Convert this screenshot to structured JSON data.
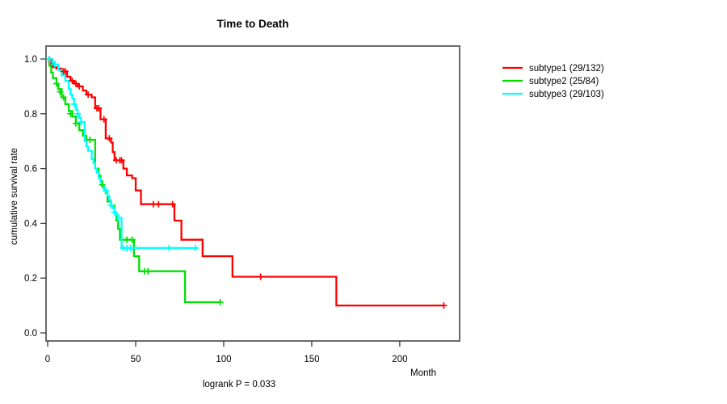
{
  "chart_data": {
    "type": "line",
    "variant": "kaplan-meier-step",
    "title": "Time to Death",
    "xlabel": "Month",
    "ylabel": "cumulative survival rate",
    "annotation": "logrank P = 0.033",
    "xlim": [
      0,
      234
    ],
    "ylim": [
      0,
      1
    ],
    "xticks": [
      0,
      50,
      100,
      150,
      200
    ],
    "xtick_labels": [
      "0",
      "50",
      "100",
      "150",
      "200"
    ],
    "yticks": [
      0,
      0.2,
      0.4,
      0.6,
      0.8,
      1
    ],
    "ytick_labels": [
      "0.0",
      "0.2",
      "0.4",
      "0.6",
      "0.8",
      "1.0"
    ],
    "grid": false,
    "legend_position": "right-outside",
    "axis_color": "#6b6b6b",
    "tick_color": "#3a3a3a",
    "text_color": "#000000",
    "series": [
      {
        "name": "subtype1 (29/132)",
        "color": "#ff0000",
        "steps": [
          [
            0,
            1.0
          ],
          [
            1,
            0.99
          ],
          [
            3,
            0.97
          ],
          [
            5,
            0.965
          ],
          [
            8,
            0.955
          ],
          [
            11,
            0.935
          ],
          [
            13,
            0.92
          ],
          [
            15,
            0.91
          ],
          [
            17,
            0.9
          ],
          [
            20,
            0.885
          ],
          [
            22,
            0.87
          ],
          [
            25,
            0.86
          ],
          [
            27,
            0.82
          ],
          [
            30,
            0.78
          ],
          [
            33,
            0.71
          ],
          [
            36,
            0.695
          ],
          [
            37,
            0.66
          ],
          [
            38,
            0.63
          ],
          [
            43,
            0.6
          ],
          [
            45,
            0.575
          ],
          [
            48,
            0.565
          ],
          [
            50,
            0.52
          ],
          [
            53,
            0.47
          ],
          [
            72,
            0.41
          ],
          [
            76,
            0.34
          ],
          [
            88,
            0.28
          ],
          [
            105,
            0.205
          ],
          [
            164,
            0.1
          ]
        ],
        "end": 225,
        "censors": [
          [
            1,
            1.0
          ],
          [
            2,
            0.99
          ],
          [
            9,
            0.955
          ],
          [
            10,
            0.955
          ],
          [
            14,
            0.92
          ],
          [
            16,
            0.91
          ],
          [
            18,
            0.9
          ],
          [
            23,
            0.87
          ],
          [
            28,
            0.82
          ],
          [
            29,
            0.82
          ],
          [
            32,
            0.78
          ],
          [
            35,
            0.71
          ],
          [
            39,
            0.63
          ],
          [
            41,
            0.63
          ],
          [
            42,
            0.63
          ],
          [
            60,
            0.47
          ],
          [
            63,
            0.47
          ],
          [
            71,
            0.47
          ],
          [
            121,
            0.205
          ],
          [
            225,
            0.1
          ]
        ]
      },
      {
        "name": "subtype2 (25/84)",
        "color": "#00e000",
        "steps": [
          [
            0,
            1.0
          ],
          [
            1,
            0.975
          ],
          [
            2,
            0.95
          ],
          [
            3,
            0.93
          ],
          [
            5,
            0.91
          ],
          [
            6,
            0.89
          ],
          [
            8,
            0.86
          ],
          [
            10,
            0.835
          ],
          [
            12,
            0.81
          ],
          [
            14,
            0.79
          ],
          [
            16,
            0.765
          ],
          [
            18,
            0.74
          ],
          [
            20,
            0.72
          ],
          [
            22,
            0.705
          ],
          [
            27,
            0.6
          ],
          [
            29,
            0.575
          ],
          [
            30,
            0.555
          ],
          [
            31,
            0.54
          ],
          [
            32,
            0.52
          ],
          [
            33,
            0.51
          ],
          [
            34,
            0.48
          ],
          [
            36,
            0.465
          ],
          [
            38,
            0.44
          ],
          [
            39,
            0.41
          ],
          [
            40,
            0.38
          ],
          [
            41,
            0.34
          ],
          [
            49,
            0.28
          ],
          [
            52,
            0.225
          ],
          [
            78,
            0.112
          ]
        ],
        "end": 98,
        "censors": [
          [
            5,
            0.91
          ],
          [
            7,
            0.88
          ],
          [
            9,
            0.86
          ],
          [
            13,
            0.8
          ],
          [
            16,
            0.765
          ],
          [
            24,
            0.705
          ],
          [
            31,
            0.54
          ],
          [
            45,
            0.34
          ],
          [
            48,
            0.34
          ],
          [
            55,
            0.225
          ],
          [
            57,
            0.225
          ],
          [
            98,
            0.112
          ]
        ]
      },
      {
        "name": "subtype3 (29/103)",
        "color": "#00ffff",
        "steps": [
          [
            0,
            1.0
          ],
          [
            2,
            0.99
          ],
          [
            4,
            0.98
          ],
          [
            6,
            0.96
          ],
          [
            8,
            0.94
          ],
          [
            10,
            0.92
          ],
          [
            12,
            0.89
          ],
          [
            13,
            0.87
          ],
          [
            14,
            0.855
          ],
          [
            15,
            0.835
          ],
          [
            16,
            0.815
          ],
          [
            17,
            0.8
          ],
          [
            18,
            0.785
          ],
          [
            19,
            0.77
          ],
          [
            21,
            0.7
          ],
          [
            22,
            0.68
          ],
          [
            23,
            0.665
          ],
          [
            25,
            0.635
          ],
          [
            26,
            0.62
          ],
          [
            27,
            0.6
          ],
          [
            28,
            0.585
          ],
          [
            29,
            0.565
          ],
          [
            30,
            0.55
          ],
          [
            31,
            0.535
          ],
          [
            32,
            0.52
          ],
          [
            34,
            0.5
          ],
          [
            35,
            0.485
          ],
          [
            36,
            0.465
          ],
          [
            37,
            0.455
          ],
          [
            38,
            0.44
          ],
          [
            39,
            0.43
          ],
          [
            40,
            0.42
          ],
          [
            42,
            0.31
          ]
        ],
        "end": 85,
        "censors": [
          [
            1,
            1.0
          ],
          [
            3,
            0.99
          ],
          [
            4,
            0.98
          ],
          [
            15,
            0.835
          ],
          [
            17,
            0.8
          ],
          [
            19,
            0.77
          ],
          [
            33,
            0.52
          ],
          [
            36,
            0.465
          ],
          [
            38,
            0.44
          ],
          [
            40,
            0.42
          ],
          [
            43,
            0.31
          ],
          [
            45,
            0.31
          ],
          [
            47,
            0.31
          ],
          [
            69,
            0.31
          ],
          [
            84,
            0.31
          ]
        ]
      }
    ]
  }
}
